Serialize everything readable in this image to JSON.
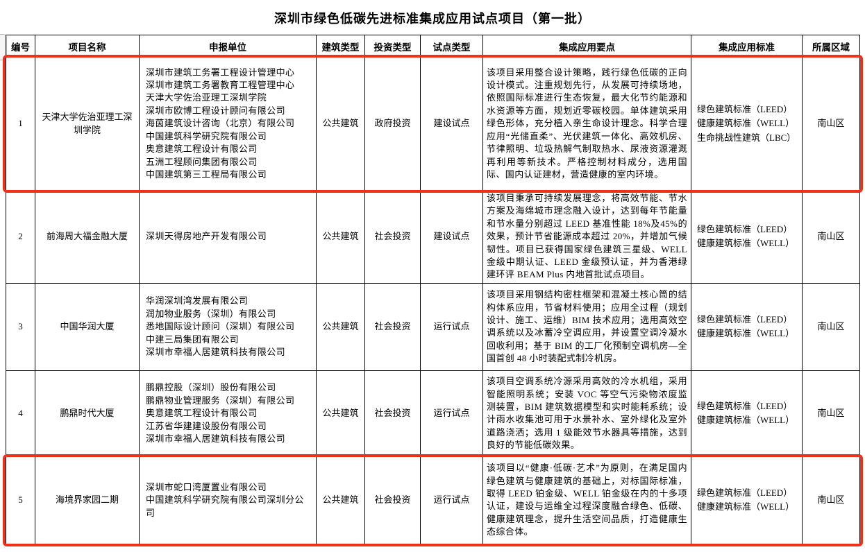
{
  "page": {
    "title": "深圳市绿色低碳先进标准集成应用试点项目（第一批）",
    "highlight_color": "#ee3118"
  },
  "table": {
    "columns": [
      {
        "key": "no",
        "label": "编号"
      },
      {
        "key": "name",
        "label": "项目名称"
      },
      {
        "key": "units",
        "label": "申报单位"
      },
      {
        "key": "building_type",
        "label": "建筑类型"
      },
      {
        "key": "investment_type",
        "label": "投资类型"
      },
      {
        "key": "pilot_type",
        "label": "试点类型"
      },
      {
        "key": "key_points",
        "label": "集成应用要点"
      },
      {
        "key": "standards",
        "label": "集成应用标准"
      },
      {
        "key": "region",
        "label": "所属区域"
      }
    ],
    "rows": [
      {
        "no": "1",
        "name": "天津大学佐治亚理工深圳学院",
        "units": [
          "深圳市建筑工务署工程设计管理中心",
          "深圳市建筑工务署教育工程管理中心",
          "天津大学佐治亚理工深圳学院",
          "深圳市欧博工程设计顾问有限公司",
          "海茵建筑设计咨询（北京）有限公司",
          "中国建筑科学研究院有限公司",
          "奥意建筑工程设计有限公司",
          "五洲工程顾问集团有限公司",
          "中国建筑第三工程局有限公司"
        ],
        "building_type": "公共建筑",
        "investment_type": "政府投资",
        "pilot_type": "建设试点",
        "key_points": "该项目采用整合设计策略，践行绿色低碳的正向设计模式。注重规划先行，从发展可持续场地，依照国际标准进行生态恢复，最大化节约能源和水资源等方面，规划近零碳校园。单体建筑采用绿色形体，充分植入亲生命设计理念。科学合理应用“光储直柔”、光伏建筑一体化、高效机房、节律照明、垃圾热解气制取热水、尿液资源灌溉再利用等新技术。严格控制材料成分，选用国际、国内认证建材，营造健康的室内环境。",
        "standards": [
          "绿色建筑标准（LEED）",
          "健康建筑标准（WELL）",
          "生命挑战性建筑（LBC）"
        ],
        "region": "南山区",
        "highlighted": true
      },
      {
        "no": "2",
        "name": "前海周大福金融大厦",
        "units": [
          "深圳天得房地产开发有限公司"
        ],
        "building_type": "公共建筑",
        "investment_type": "社会投资",
        "pilot_type": "建设试点",
        "key_points": "该项目秉承可持续发展理念，将高效节能、节水方案及海绵城市理念融入设计，达到每年节能量和节水量分别超过 LEED 基准性能 18%及45%的效果，预计节省能源成本超过 20%，并增加气候韧性。项目已获得国家绿色建筑三星级、WELL 金级中期认证、LEED 金级预认证，并为香港绿建环评 BEAM Plus 内地首批试点项目。",
        "standards": [
          "绿色建筑标准（LEED）",
          "健康建筑标准（WELL）"
        ],
        "region": "南山区",
        "highlighted": false
      },
      {
        "no": "3",
        "name": "中国华润大厦",
        "units": [
          "华润深圳湾发展有限公司",
          "润加物业服务（深圳）有限公司",
          "悉地国际设计顾问（深圳）有限公司",
          "中建三局集团有限公司",
          "深圳市幸福人居建筑科技有限公司"
        ],
        "building_type": "公共建筑",
        "investment_type": "社会投资",
        "pilot_type": "运行试点",
        "key_points": "该项目采用钢结构密柱框架和混凝土核心筒的结构体系应用，节省材料使用；应用全过程（规划设计、施工、运维）BIM 技术应用；选用高效空调系统以及冰蓄冷空调应用，并设置空调冷凝水回收利用；基于 BIM 的工厂化预制空调机房—全国首创 48 小时装配式制冷机房。",
        "standards": [
          "绿色建筑标准（LEED）",
          "健康建筑标准（WELL）"
        ],
        "region": "南山区",
        "highlighted": false
      },
      {
        "no": "4",
        "name": "鹏鼎时代大厦",
        "units": [
          "鹏鼎控股（深圳）股份有限公司",
          "鹏鼎物业管理服务（深圳）有限公司",
          "奥意建筑工程设计有限公司",
          "江苏省华建建设股份有限公司",
          "深圳市幸福人居建筑科技有限公司"
        ],
        "building_type": "公共建筑",
        "investment_type": "社会投资",
        "pilot_type": "运行试点",
        "key_points": "该项目空调系统冷源采用高效的冷水机组，采用智能照明系统；安装 VOC 等空气污染物浓度监测装置，BIM 建筑数据模型和实时能耗系统；设计雨水收集池可用于水景补水、室外绿化及室外道路浇洒；选用 1 级能效节水器具等措施，达到良好的节能低碳效果。",
        "standards": [
          "绿色建筑标准（LEED）",
          "健康建筑标准（WELL）"
        ],
        "region": "南山区",
        "highlighted": false
      },
      {
        "no": "5",
        "name": "海境界家园二期",
        "units": [
          "深圳市蛇口湾厦置业有限公司",
          "中国建筑科学研究院有限公司深圳分公司"
        ],
        "building_type": "公共建筑",
        "investment_type": "社会投资",
        "pilot_type": "运行试点",
        "key_points": "该项目以“健康·低碳·艺术”为原则，在满足国内绿色建筑与健康建筑的基础上，对标国际标准，取得 LEED 铂金级、WELL 铂金级在内的十多项认证，建设与运维全过程深度融合绿色、低碳、健康建筑理念，提升生活空间品质，打造健康生态综合体。",
        "standards": [
          "绿色建筑标准（LEED）",
          "健康建筑标准（WELL）"
        ],
        "region": "南山区",
        "highlighted": true
      }
    ]
  }
}
